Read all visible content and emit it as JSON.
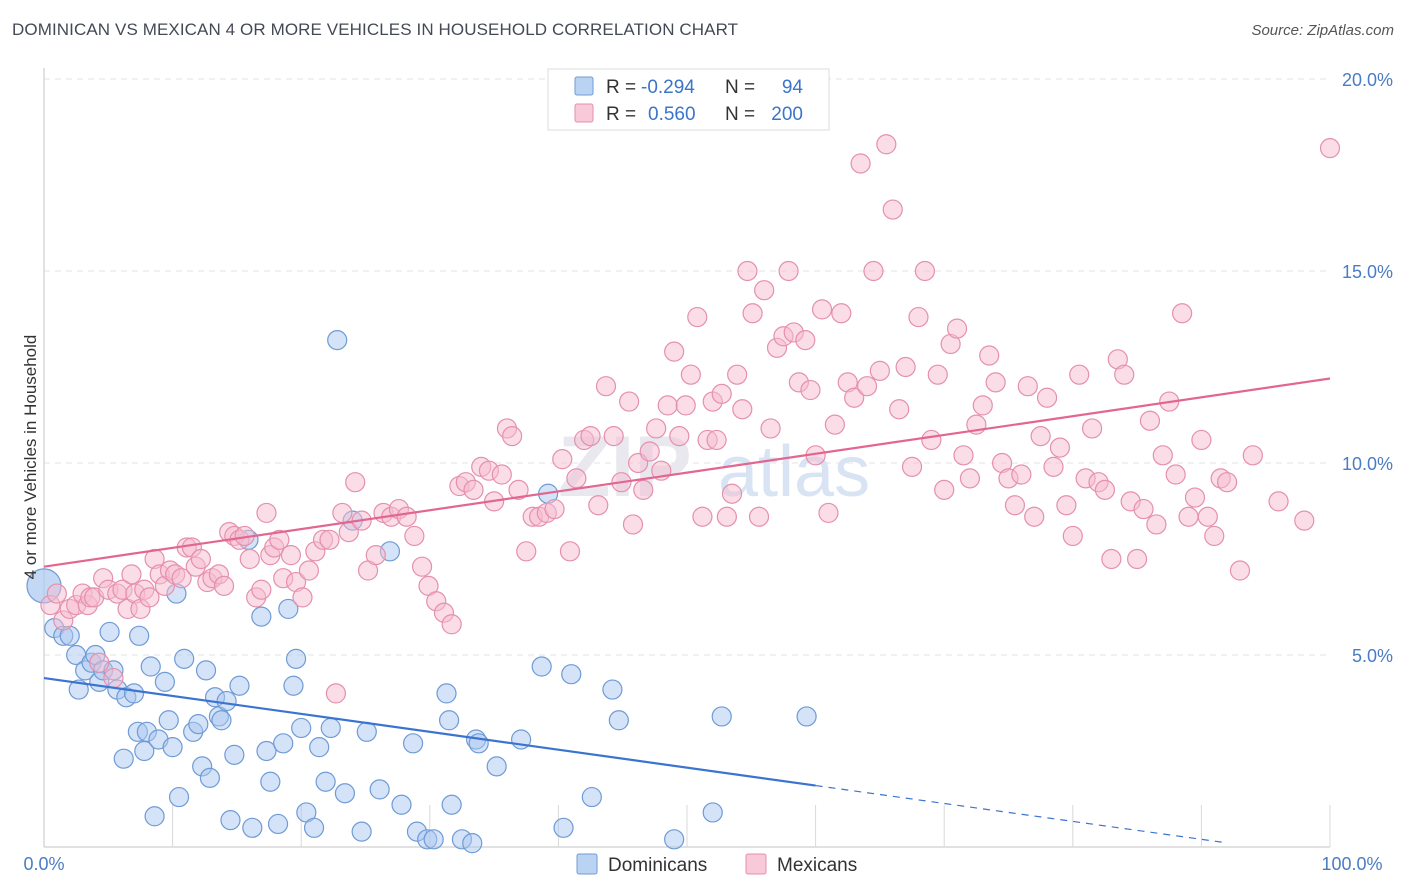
{
  "header": {
    "title": "DOMINICAN VS MEXICAN 4 OR MORE VEHICLES IN HOUSEHOLD CORRELATION CHART",
    "source": "Source: ZipAtlas.com"
  },
  "watermark": {
    "zip": "ZIP",
    "atlas": "atlas"
  },
  "legend_top": {
    "r_label": "R =",
    "n_label": "N =",
    "rows": [
      {
        "r": "-0.294",
        "n": "94",
        "color": "#a9c8f0",
        "stroke": "#6f9bd6"
      },
      {
        "r": "0.560",
        "n": "200",
        "color": "#f6bcd0",
        "stroke": "#e590ad"
      }
    ]
  },
  "legend_bottom": [
    {
      "label": "Dominicans",
      "color": "#a9c8f0",
      "stroke": "#6f9bd6"
    },
    {
      "label": "Mexicans",
      "color": "#f6bcd0",
      "stroke": "#e590ad"
    }
  ],
  "chart_data": {
    "type": "scatter",
    "title": "DOMINICAN VS MEXICAN 4 OR MORE VEHICLES IN HOUSEHOLD CORRELATION CHART",
    "xlabel": "",
    "ylabel": "4 or more Vehicles in Household",
    "xlim": [
      0,
      100
    ],
    "ylim": [
      0,
      20
    ],
    "x_tick_labels": [
      "0.0%",
      "100.0%"
    ],
    "y_ticks": [
      5,
      10,
      15,
      20
    ],
    "y_tick_labels": [
      "5.0%",
      "10.0%",
      "15.0%",
      "20.0%"
    ],
    "grid": true,
    "legend": "top-center",
    "series": [
      {
        "name": "Dominicans",
        "color": "#a9c8f0",
        "stroke": "#6f9bd6",
        "line_color": "#3b74d0",
        "trend": {
          "x0": 0,
          "y0": 4.4,
          "x1": 60,
          "y1": 1.6,
          "dash_to_x": 92
        },
        "points": [
          [
            0,
            6.8
          ],
          [
            0.8,
            5.7
          ],
          [
            1.5,
            5.5
          ],
          [
            2,
            5.5
          ],
          [
            2.5,
            5.0
          ],
          [
            2.7,
            4.1
          ],
          [
            3.2,
            4.6
          ],
          [
            3.7,
            4.8
          ],
          [
            4.0,
            5.0
          ],
          [
            4.3,
            4.3
          ],
          [
            4.6,
            4.6
          ],
          [
            5.1,
            5.6
          ],
          [
            5.4,
            4.6
          ],
          [
            5.7,
            4.1
          ],
          [
            6.2,
            2.3
          ],
          [
            6.4,
            3.9
          ],
          [
            7.0,
            4.0
          ],
          [
            7.3,
            3.0
          ],
          [
            7.4,
            5.5
          ],
          [
            7.8,
            2.5
          ],
          [
            8.0,
            3.0
          ],
          [
            8.3,
            4.7
          ],
          [
            8.6,
            0.8
          ],
          [
            8.9,
            2.8
          ],
          [
            9.4,
            4.3
          ],
          [
            9.7,
            3.3
          ],
          [
            10.0,
            2.6
          ],
          [
            10.3,
            6.6
          ],
          [
            10.5,
            1.3
          ],
          [
            10.9,
            4.9
          ],
          [
            11.6,
            3.0
          ],
          [
            12.0,
            3.2
          ],
          [
            12.3,
            2.1
          ],
          [
            12.6,
            4.6
          ],
          [
            12.9,
            1.8
          ],
          [
            13.3,
            3.9
          ],
          [
            13.6,
            3.4
          ],
          [
            13.8,
            3.3
          ],
          [
            14.2,
            3.8
          ],
          [
            14.5,
            0.7
          ],
          [
            14.8,
            2.4
          ],
          [
            15.2,
            4.2
          ],
          [
            15.9,
            8.0
          ],
          [
            16.2,
            0.5
          ],
          [
            16.9,
            6.0
          ],
          [
            17.3,
            2.5
          ],
          [
            17.6,
            1.7
          ],
          [
            18.2,
            0.6
          ],
          [
            18.6,
            2.7
          ],
          [
            19.0,
            6.2
          ],
          [
            19.4,
            4.2
          ],
          [
            19.6,
            4.9
          ],
          [
            20.0,
            3.1
          ],
          [
            20.4,
            0.9
          ],
          [
            21.0,
            0.5
          ],
          [
            21.4,
            2.6
          ],
          [
            21.9,
            1.7
          ],
          [
            22.3,
            3.1
          ],
          [
            22.8,
            13.2
          ],
          [
            23.4,
            1.4
          ],
          [
            24.0,
            8.5
          ],
          [
            24.7,
            0.4
          ],
          [
            25.1,
            3.0
          ],
          [
            26.1,
            1.5
          ],
          [
            26.9,
            7.7
          ],
          [
            27.8,
            1.1
          ],
          [
            28.7,
            2.7
          ],
          [
            29.0,
            0.4
          ],
          [
            29.8,
            0.2
          ],
          [
            30.3,
            0.2
          ],
          [
            31.3,
            4.0
          ],
          [
            31.5,
            3.3
          ],
          [
            31.7,
            1.1
          ],
          [
            32.5,
            0.2
          ],
          [
            33.3,
            0.1
          ],
          [
            33.6,
            2.8
          ],
          [
            33.8,
            2.7
          ],
          [
            35.2,
            2.1
          ],
          [
            37.1,
            2.8
          ],
          [
            38.7,
            4.7
          ],
          [
            39.2,
            9.2
          ],
          [
            40.4,
            0.5
          ],
          [
            41.0,
            4.5
          ],
          [
            42.6,
            1.3
          ],
          [
            44.2,
            4.1
          ],
          [
            44.7,
            3.3
          ],
          [
            49.0,
            0.2
          ],
          [
            52.0,
            0.9
          ],
          [
            52.7,
            3.4
          ],
          [
            59.3,
            3.4
          ]
        ]
      },
      {
        "name": "Mexicans",
        "color": "#f6bcd0",
        "stroke": "#e590ad",
        "line_color": "#e36690",
        "trend": {
          "x0": 0,
          "y0": 7.3,
          "x1": 100,
          "y1": 12.2
        },
        "points": [
          [
            0.5,
            6.3
          ],
          [
            1.0,
            6.6
          ],
          [
            1.5,
            5.9
          ],
          [
            2.0,
            6.2
          ],
          [
            2.5,
            6.3
          ],
          [
            3.0,
            6.6
          ],
          [
            3.4,
            6.3
          ],
          [
            3.6,
            6.5
          ],
          [
            3.9,
            6.5
          ],
          [
            4.3,
            4.8
          ],
          [
            4.6,
            7.0
          ],
          [
            5.0,
            6.7
          ],
          [
            5.4,
            4.4
          ],
          [
            5.7,
            6.6
          ],
          [
            6.1,
            6.7
          ],
          [
            6.5,
            6.2
          ],
          [
            6.8,
            7.1
          ],
          [
            7.1,
            6.6
          ],
          [
            7.5,
            6.2
          ],
          [
            7.8,
            6.7
          ],
          [
            8.2,
            6.5
          ],
          [
            8.6,
            7.5
          ],
          [
            9.0,
            7.1
          ],
          [
            9.4,
            6.8
          ],
          [
            9.8,
            7.2
          ],
          [
            10.2,
            7.1
          ],
          [
            10.7,
            7.0
          ],
          [
            11.1,
            7.8
          ],
          [
            11.5,
            7.8
          ],
          [
            11.8,
            7.3
          ],
          [
            12.2,
            7.5
          ],
          [
            12.7,
            6.9
          ],
          [
            13.1,
            7.0
          ],
          [
            13.6,
            7.1
          ],
          [
            14.0,
            6.8
          ],
          [
            14.4,
            8.2
          ],
          [
            14.8,
            8.1
          ],
          [
            15.2,
            8.0
          ],
          [
            15.6,
            8.1
          ],
          [
            16.0,
            7.5
          ],
          [
            16.5,
            6.5
          ],
          [
            16.9,
            6.7
          ],
          [
            17.3,
            8.7
          ],
          [
            17.6,
            7.6
          ],
          [
            17.9,
            7.8
          ],
          [
            18.3,
            8.0
          ],
          [
            18.6,
            7.0
          ],
          [
            19.2,
            7.6
          ],
          [
            19.6,
            6.9
          ],
          [
            20.1,
            6.5
          ],
          [
            20.6,
            7.2
          ],
          [
            21.1,
            7.7
          ],
          [
            21.7,
            8.0
          ],
          [
            22.2,
            8.0
          ],
          [
            22.7,
            4.0
          ],
          [
            23.2,
            8.7
          ],
          [
            23.7,
            8.2
          ],
          [
            24.2,
            9.5
          ],
          [
            24.7,
            8.5
          ],
          [
            25.2,
            7.2
          ],
          [
            25.8,
            7.6
          ],
          [
            26.4,
            8.7
          ],
          [
            27.0,
            8.6
          ],
          [
            27.6,
            8.8
          ],
          [
            28.2,
            8.6
          ],
          [
            28.8,
            8.1
          ],
          [
            29.4,
            7.3
          ],
          [
            29.9,
            6.8
          ],
          [
            30.5,
            6.4
          ],
          [
            31.1,
            6.1
          ],
          [
            31.7,
            5.8
          ],
          [
            32.3,
            9.4
          ],
          [
            32.8,
            9.5
          ],
          [
            33.4,
            9.3
          ],
          [
            34.0,
            9.9
          ],
          [
            34.6,
            9.8
          ],
          [
            35.0,
            9.0
          ],
          [
            35.6,
            9.7
          ],
          [
            36.0,
            10.9
          ],
          [
            36.4,
            10.7
          ],
          [
            36.9,
            9.3
          ],
          [
            37.5,
            7.7
          ],
          [
            38.0,
            8.6
          ],
          [
            38.5,
            8.6
          ],
          [
            39.1,
            8.7
          ],
          [
            39.7,
            8.8
          ],
          [
            40.3,
            10.1
          ],
          [
            40.9,
            7.7
          ],
          [
            41.4,
            9.6
          ],
          [
            42.0,
            10.6
          ],
          [
            42.5,
            10.7
          ],
          [
            43.1,
            8.9
          ],
          [
            43.7,
            12.0
          ],
          [
            44.3,
            10.7
          ],
          [
            44.9,
            9.5
          ],
          [
            45.5,
            11.6
          ],
          [
            45.8,
            8.4
          ],
          [
            46.2,
            10.0
          ],
          [
            46.6,
            9.3
          ],
          [
            47.1,
            10.3
          ],
          [
            47.6,
            10.9
          ],
          [
            48.0,
            9.8
          ],
          [
            48.5,
            11.5
          ],
          [
            49.0,
            12.9
          ],
          [
            49.4,
            10.7
          ],
          [
            49.9,
            11.5
          ],
          [
            50.3,
            12.3
          ],
          [
            50.8,
            13.8
          ],
          [
            51.2,
            8.6
          ],
          [
            51.6,
            10.6
          ],
          [
            52.0,
            11.6
          ],
          [
            52.3,
            10.6
          ],
          [
            52.7,
            11.8
          ],
          [
            53.1,
            8.6
          ],
          [
            53.5,
            9.2
          ],
          [
            53.9,
            12.3
          ],
          [
            54.3,
            11.4
          ],
          [
            54.7,
            15.0
          ],
          [
            55.1,
            13.9
          ],
          [
            55.6,
            8.6
          ],
          [
            56.0,
            14.5
          ],
          [
            56.5,
            10.9
          ],
          [
            57.0,
            13.0
          ],
          [
            57.5,
            13.3
          ],
          [
            57.9,
            15.0
          ],
          [
            58.3,
            13.4
          ],
          [
            58.7,
            12.1
          ],
          [
            59.2,
            13.2
          ],
          [
            59.6,
            11.9
          ],
          [
            60.0,
            10.2
          ],
          [
            60.5,
            14.0
          ],
          [
            61.0,
            8.7
          ],
          [
            61.5,
            11.0
          ],
          [
            62.0,
            13.9
          ],
          [
            62.5,
            12.1
          ],
          [
            63.0,
            11.7
          ],
          [
            63.5,
            17.8
          ],
          [
            64.0,
            12.0
          ],
          [
            64.5,
            15.0
          ],
          [
            65.0,
            12.4
          ],
          [
            65.5,
            18.3
          ],
          [
            66.0,
            16.6
          ],
          [
            66.5,
            11.4
          ],
          [
            67.0,
            12.5
          ],
          [
            67.5,
            9.9
          ],
          [
            68.0,
            13.8
          ],
          [
            68.5,
            15.0
          ],
          [
            69.0,
            10.6
          ],
          [
            69.5,
            12.3
          ],
          [
            70.0,
            9.3
          ],
          [
            70.5,
            13.1
          ],
          [
            71.0,
            13.5
          ],
          [
            71.5,
            10.2
          ],
          [
            72.0,
            9.6
          ],
          [
            72.5,
            11.0
          ],
          [
            73.0,
            11.5
          ],
          [
            73.5,
            12.8
          ],
          [
            74.0,
            12.1
          ],
          [
            74.5,
            10.0
          ],
          [
            75.0,
            9.6
          ],
          [
            75.5,
            8.9
          ],
          [
            76.0,
            9.7
          ],
          [
            76.5,
            12.0
          ],
          [
            77.0,
            8.6
          ],
          [
            77.5,
            10.7
          ],
          [
            78.0,
            11.7
          ],
          [
            78.5,
            9.9
          ],
          [
            79.0,
            10.4
          ],
          [
            79.5,
            8.9
          ],
          [
            80.0,
            8.1
          ],
          [
            80.5,
            12.3
          ],
          [
            81.0,
            9.6
          ],
          [
            81.5,
            10.9
          ],
          [
            82.0,
            9.5
          ],
          [
            82.5,
            9.3
          ],
          [
            83.0,
            7.5
          ],
          [
            83.5,
            12.7
          ],
          [
            84.0,
            12.3
          ],
          [
            84.5,
            9.0
          ],
          [
            85.0,
            7.5
          ],
          [
            85.5,
            8.8
          ],
          [
            86.0,
            11.1
          ],
          [
            86.5,
            8.4
          ],
          [
            87.0,
            10.2
          ],
          [
            87.5,
            11.6
          ],
          [
            88.0,
            9.7
          ],
          [
            88.5,
            13.9
          ],
          [
            89.0,
            8.6
          ],
          [
            89.5,
            9.1
          ],
          [
            90.0,
            10.6
          ],
          [
            90.5,
            8.6
          ],
          [
            91.0,
            8.1
          ],
          [
            91.5,
            9.6
          ],
          [
            92.0,
            9.5
          ],
          [
            93.0,
            7.2
          ],
          [
            94.0,
            10.2
          ],
          [
            96.0,
            9.0
          ],
          [
            98.0,
            8.5
          ],
          [
            100,
            18.2
          ]
        ]
      }
    ]
  }
}
